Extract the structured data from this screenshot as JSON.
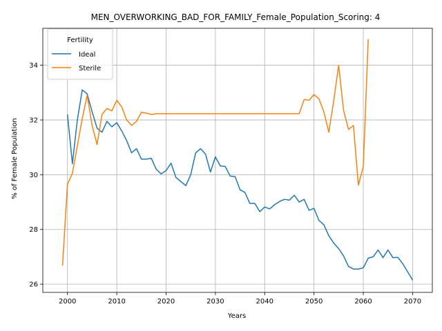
{
  "chart_data": {
    "type": "line",
    "title": "MEN_OVERWORKING_BAD_FOR_FAMILY_Female_Population_Scoring: 4",
    "xlabel": "Years",
    "ylabel": "% of Female Population",
    "xlim": [
      1995,
      2074
    ],
    "ylim": [
      25.7,
      35.35
    ],
    "xticks": [
      2000,
      2010,
      2020,
      2030,
      2040,
      2050,
      2060,
      2070
    ],
    "yticks": [
      26,
      28,
      30,
      32,
      34
    ],
    "grid": true,
    "legend": {
      "title": "Fertility",
      "placement": "top-left"
    },
    "series": [
      {
        "name": "Ideal",
        "color": "#1f77b4",
        "x": [
          2000,
          2001,
          2002,
          2003,
          2004,
          2005,
          2006,
          2007,
          2008,
          2009,
          2010,
          2011,
          2012,
          2013,
          2014,
          2015,
          2016,
          2017,
          2018,
          2019,
          2020,
          2021,
          2022,
          2023,
          2024,
          2025,
          2026,
          2027,
          2028,
          2029,
          2030,
          2031,
          2032,
          2033,
          2034,
          2035,
          2036,
          2037,
          2038,
          2039,
          2040,
          2041,
          2042,
          2043,
          2044,
          2045,
          2046,
          2047,
          2048,
          2049,
          2050,
          2051,
          2052,
          2053,
          2054,
          2055,
          2056,
          2057,
          2058,
          2059,
          2060,
          2061,
          2062,
          2063,
          2064,
          2065,
          2066,
          2067,
          2068,
          2069,
          2070
        ],
        "y": [
          32.2,
          30.4,
          32.0,
          33.1,
          32.95,
          32.3,
          31.7,
          31.55,
          31.95,
          31.75,
          31.9,
          31.6,
          31.25,
          30.8,
          30.95,
          30.57,
          30.57,
          30.6,
          30.2,
          30.03,
          30.15,
          30.42,
          29.9,
          29.75,
          29.6,
          30.0,
          30.8,
          30.95,
          30.75,
          30.1,
          30.65,
          30.32,
          30.3,
          29.95,
          29.93,
          29.45,
          29.35,
          28.95,
          28.95,
          28.65,
          28.82,
          28.75,
          28.9,
          29.02,
          29.1,
          29.07,
          29.25,
          29.0,
          29.1,
          28.7,
          28.77,
          28.33,
          28.17,
          27.77,
          27.5,
          27.3,
          27.03,
          26.65,
          26.55,
          26.55,
          26.6,
          26.95,
          27.0,
          27.25,
          26.97,
          27.25,
          26.97,
          26.98,
          26.75,
          26.45,
          26.15
        ]
      },
      {
        "name": "Sterile",
        "color": "#ff7f0e",
        "x": [
          1999,
          2000,
          2001,
          2002,
          2003,
          2004,
          2005,
          2006,
          2007,
          2008,
          2009,
          2010,
          2011,
          2012,
          2013,
          2014,
          2015,
          2016,
          2017,
          2018,
          2019,
          2020,
          2021,
          2022,
          2023,
          2024,
          2025,
          2026,
          2027,
          2028,
          2029,
          2030,
          2031,
          2032,
          2033,
          2034,
          2035,
          2036,
          2037,
          2038,
          2039,
          2040,
          2041,
          2042,
          2043,
          2044,
          2045,
          2046,
          2047,
          2048,
          2049,
          2050,
          2051,
          2052,
          2053,
          2054,
          2055,
          2056,
          2057,
          2058,
          2059,
          2060,
          2061
        ],
        "y": [
          26.68,
          29.65,
          30.05,
          31.05,
          32.05,
          32.9,
          31.8,
          31.1,
          32.2,
          32.42,
          32.33,
          32.72,
          32.48,
          32.0,
          31.8,
          31.95,
          32.28,
          32.25,
          32.2,
          32.23,
          32.23,
          32.23,
          32.23,
          32.23,
          32.23,
          32.23,
          32.23,
          32.23,
          32.23,
          32.23,
          32.23,
          32.23,
          32.23,
          32.23,
          32.23,
          32.23,
          32.23,
          32.23,
          32.23,
          32.23,
          32.23,
          32.23,
          32.23,
          32.23,
          32.23,
          32.23,
          32.23,
          32.23,
          32.23,
          32.75,
          32.72,
          32.93,
          32.77,
          32.3,
          31.55,
          32.7,
          34.0,
          32.35,
          31.65,
          31.8,
          29.62,
          30.3,
          34.95
        ]
      }
    ]
  }
}
